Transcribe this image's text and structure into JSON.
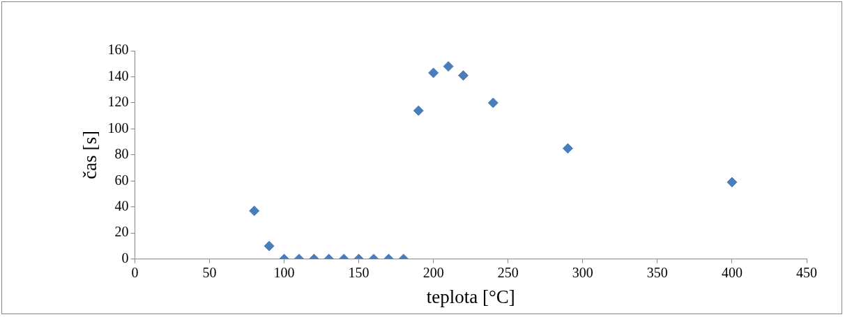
{
  "chart_data": {
    "type": "scatter",
    "xlabel": "teplota [°C]",
    "ylabel": "čas [s]",
    "x": [
      80,
      90,
      100,
      110,
      120,
      130,
      140,
      150,
      160,
      170,
      180,
      190,
      200,
      210,
      220,
      240,
      290,
      400
    ],
    "series": [
      {
        "color": "#4a7ebb",
        "values": [
          37,
          10,
          0,
          0,
          0,
          0,
          0,
          0,
          0,
          0,
          0,
          114,
          143,
          148,
          141,
          120,
          85,
          59
        ]
      }
    ],
    "xlim": [
      0,
      450
    ],
    "xticks": [
      0,
      50,
      100,
      150,
      200,
      250,
      300,
      350,
      400,
      450
    ],
    "ylim": [
      0,
      160
    ],
    "yticks": [
      0,
      20,
      40,
      60,
      80,
      100,
      120,
      140,
      160
    ],
    "grid": false,
    "legend": false,
    "marker": "diamond"
  }
}
